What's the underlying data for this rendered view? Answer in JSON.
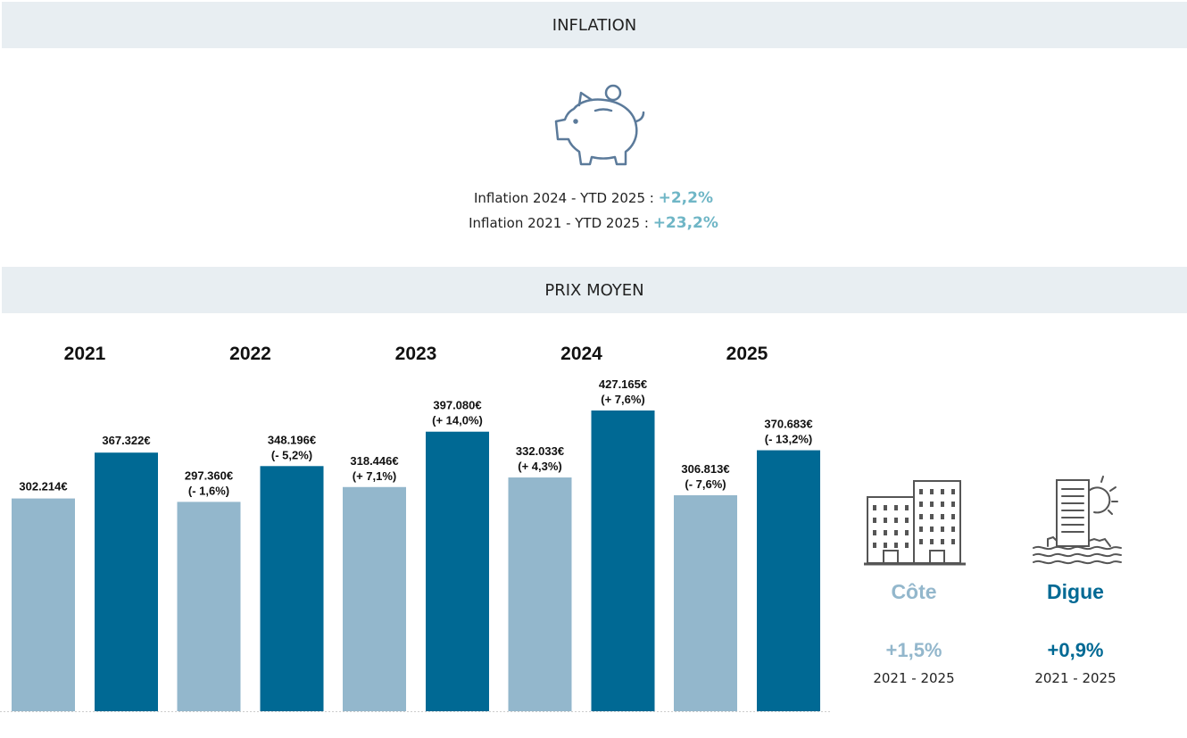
{
  "sections": {
    "inflation_title": "INFLATION",
    "prix_title": "PRIX MOYEN"
  },
  "inflation": {
    "line1_label": "Inflation 2024 - YTD 2025 :",
    "line1_value": "+2,2%",
    "line2_label": "Inflation 2021 - YTD 2025 :",
    "line2_value": "+23,2%",
    "icon": "piggy-bank-icon"
  },
  "colors": {
    "cote": "#93b7cc",
    "digue": "#006994",
    "banner": "#e8eef2",
    "inflation_value": "#6fb6c6"
  },
  "segments": {
    "cote": {
      "name": "Côte",
      "change": "+1,5%",
      "period": "2021 - 2025",
      "icon": "buildings-icon"
    },
    "digue": {
      "name": "Digue",
      "change": "+0,9%",
      "period": "2021 - 2025",
      "icon": "seafront-building-icon"
    }
  },
  "chart_data": {
    "type": "bar",
    "categories": [
      "2021",
      "2022",
      "2023",
      "2024",
      "2025"
    ],
    "series": [
      {
        "name": "Côte",
        "values": [
          302214,
          297360,
          318446,
          332033,
          306813
        ],
        "labels": [
          "302.214€",
          "297.360€",
          "318.446€",
          "332.033€",
          "306.813€"
        ],
        "changes": [
          "",
          "(- 1,6%)",
          "(+ 7,1%)",
          "(+ 4,3%)",
          "(- 7,6%)"
        ]
      },
      {
        "name": "Digue",
        "values": [
          367322,
          348196,
          397080,
          427165,
          370683
        ],
        "labels": [
          "367.322€",
          "348.196€",
          "397.080€",
          "427.165€",
          "370.683€"
        ],
        "changes": [
          "",
          "(- 5,2%)",
          "(+ 14,0%)",
          "(+ 7,6%)",
          "(- 13,2%)"
        ]
      }
    ],
    "ylim": [
      0,
      427165
    ]
  }
}
